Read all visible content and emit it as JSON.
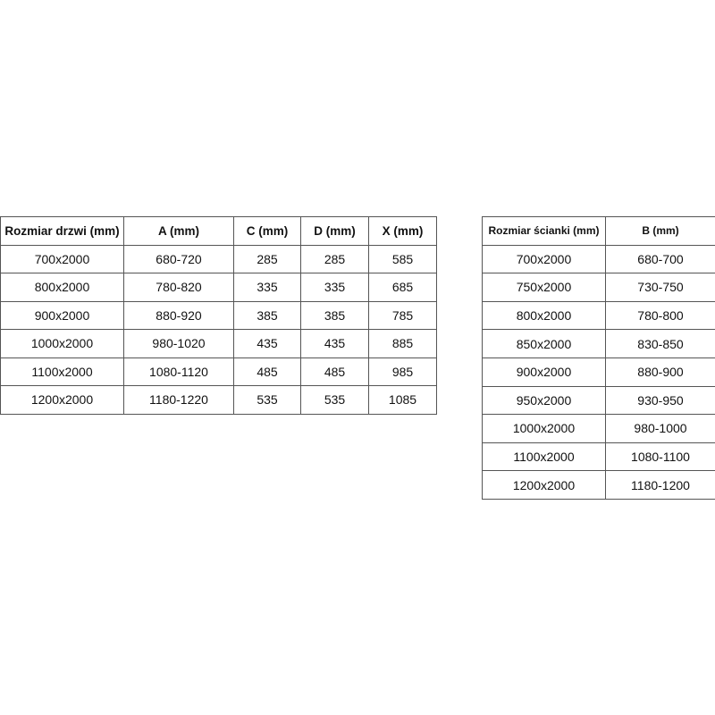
{
  "door_table": {
    "headers": [
      "Rozmiar drzwi (mm)",
      "A (mm)",
      "C (mm)",
      "D (mm)",
      "X (mm)"
    ],
    "rows": [
      [
        "700x2000",
        "680-720",
        "285",
        "285",
        "585"
      ],
      [
        "800x2000",
        "780-820",
        "335",
        "335",
        "685"
      ],
      [
        "900x2000",
        "880-920",
        "385",
        "385",
        "785"
      ],
      [
        "1000x2000",
        "980-1020",
        "435",
        "435",
        "885"
      ],
      [
        "1100x2000",
        "1080-1120",
        "485",
        "485",
        "985"
      ],
      [
        "1200x2000",
        "1180-1220",
        "535",
        "535",
        "1085"
      ]
    ]
  },
  "wall_table": {
    "headers": [
      "Rozmiar ścianki (mm)",
      "B (mm)"
    ],
    "rows": [
      [
        "700x2000",
        "680-700"
      ],
      [
        "750x2000",
        "730-750"
      ],
      [
        "800x2000",
        "780-800"
      ],
      [
        "850x2000",
        "830-850"
      ],
      [
        "900x2000",
        "880-900"
      ],
      [
        "950x2000",
        "930-950"
      ],
      [
        "1000x2000",
        "980-1000"
      ],
      [
        "1100x2000",
        "1080-1100"
      ],
      [
        "1200x2000",
        "1180-1200"
      ]
    ]
  }
}
